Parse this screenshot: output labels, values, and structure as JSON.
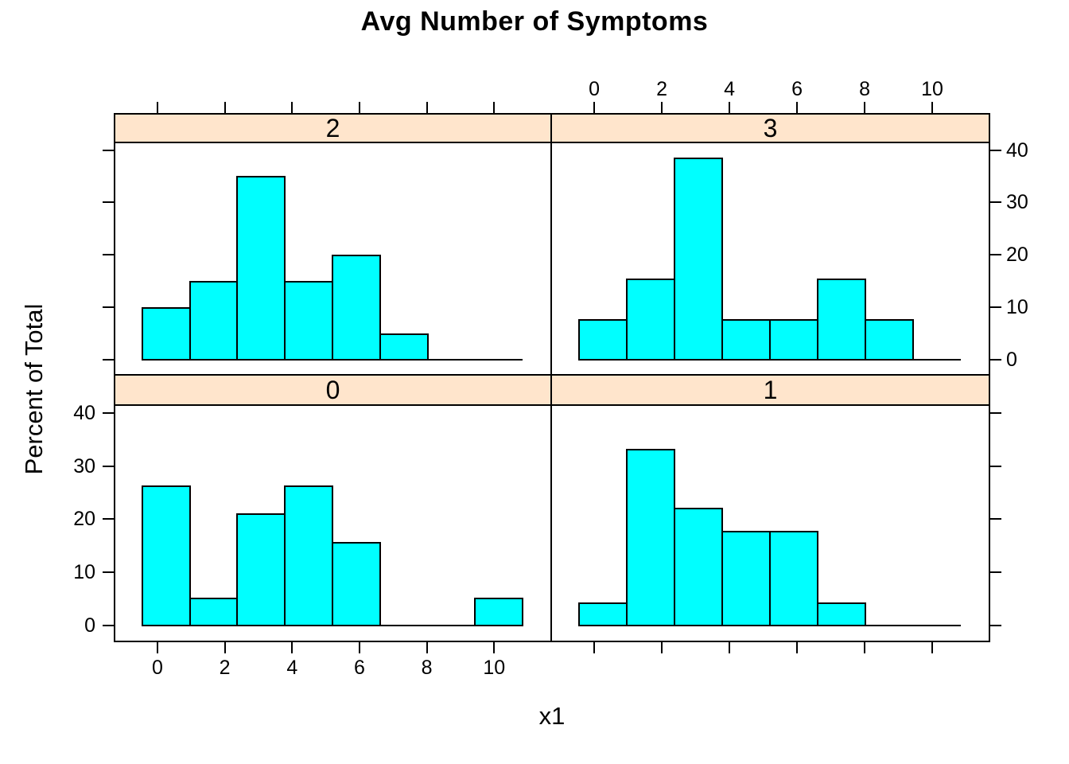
{
  "chart_data": {
    "type": "bar",
    "subtype": "lattice-conditioned-histogram",
    "title": "Avg Number of Symptoms",
    "xlabel": "x1",
    "ylabel": "Percent of Total",
    "bar_fill": "#00FFFF",
    "bar_stroke": "#000000",
    "strip_fill": "#FFE5CC",
    "background": "#FFFFFF",
    "x_ticks": [
      0,
      2,
      4,
      6,
      8,
      10
    ],
    "y_ticks": [
      0,
      10,
      20,
      30,
      40
    ],
    "xlim": [
      -1.25,
      11.67
    ],
    "ylim": [
      -2.8,
      41.3
    ],
    "bin_start": -0.45,
    "bin_width": 1.4125,
    "n_bins": 8,
    "grid": false,
    "legend_position": "none",
    "panels": [
      {
        "label": "0",
        "position": "bottom-left",
        "percents": [
          26.3,
          5.3,
          21.1,
          26.3,
          15.8,
          0,
          0,
          5.3
        ]
      },
      {
        "label": "1",
        "position": "bottom-right",
        "percents": [
          4.4,
          33.3,
          22.2,
          17.8,
          17.8,
          4.4,
          0,
          0
        ]
      },
      {
        "label": "2",
        "position": "top-left",
        "percents": [
          10,
          15,
          35,
          15,
          20,
          5,
          0,
          0
        ]
      },
      {
        "label": "3",
        "position": "top-right",
        "percents": [
          7.7,
          15.4,
          38.5,
          7.7,
          7.7,
          15.4,
          7.7,
          0
        ]
      }
    ]
  }
}
